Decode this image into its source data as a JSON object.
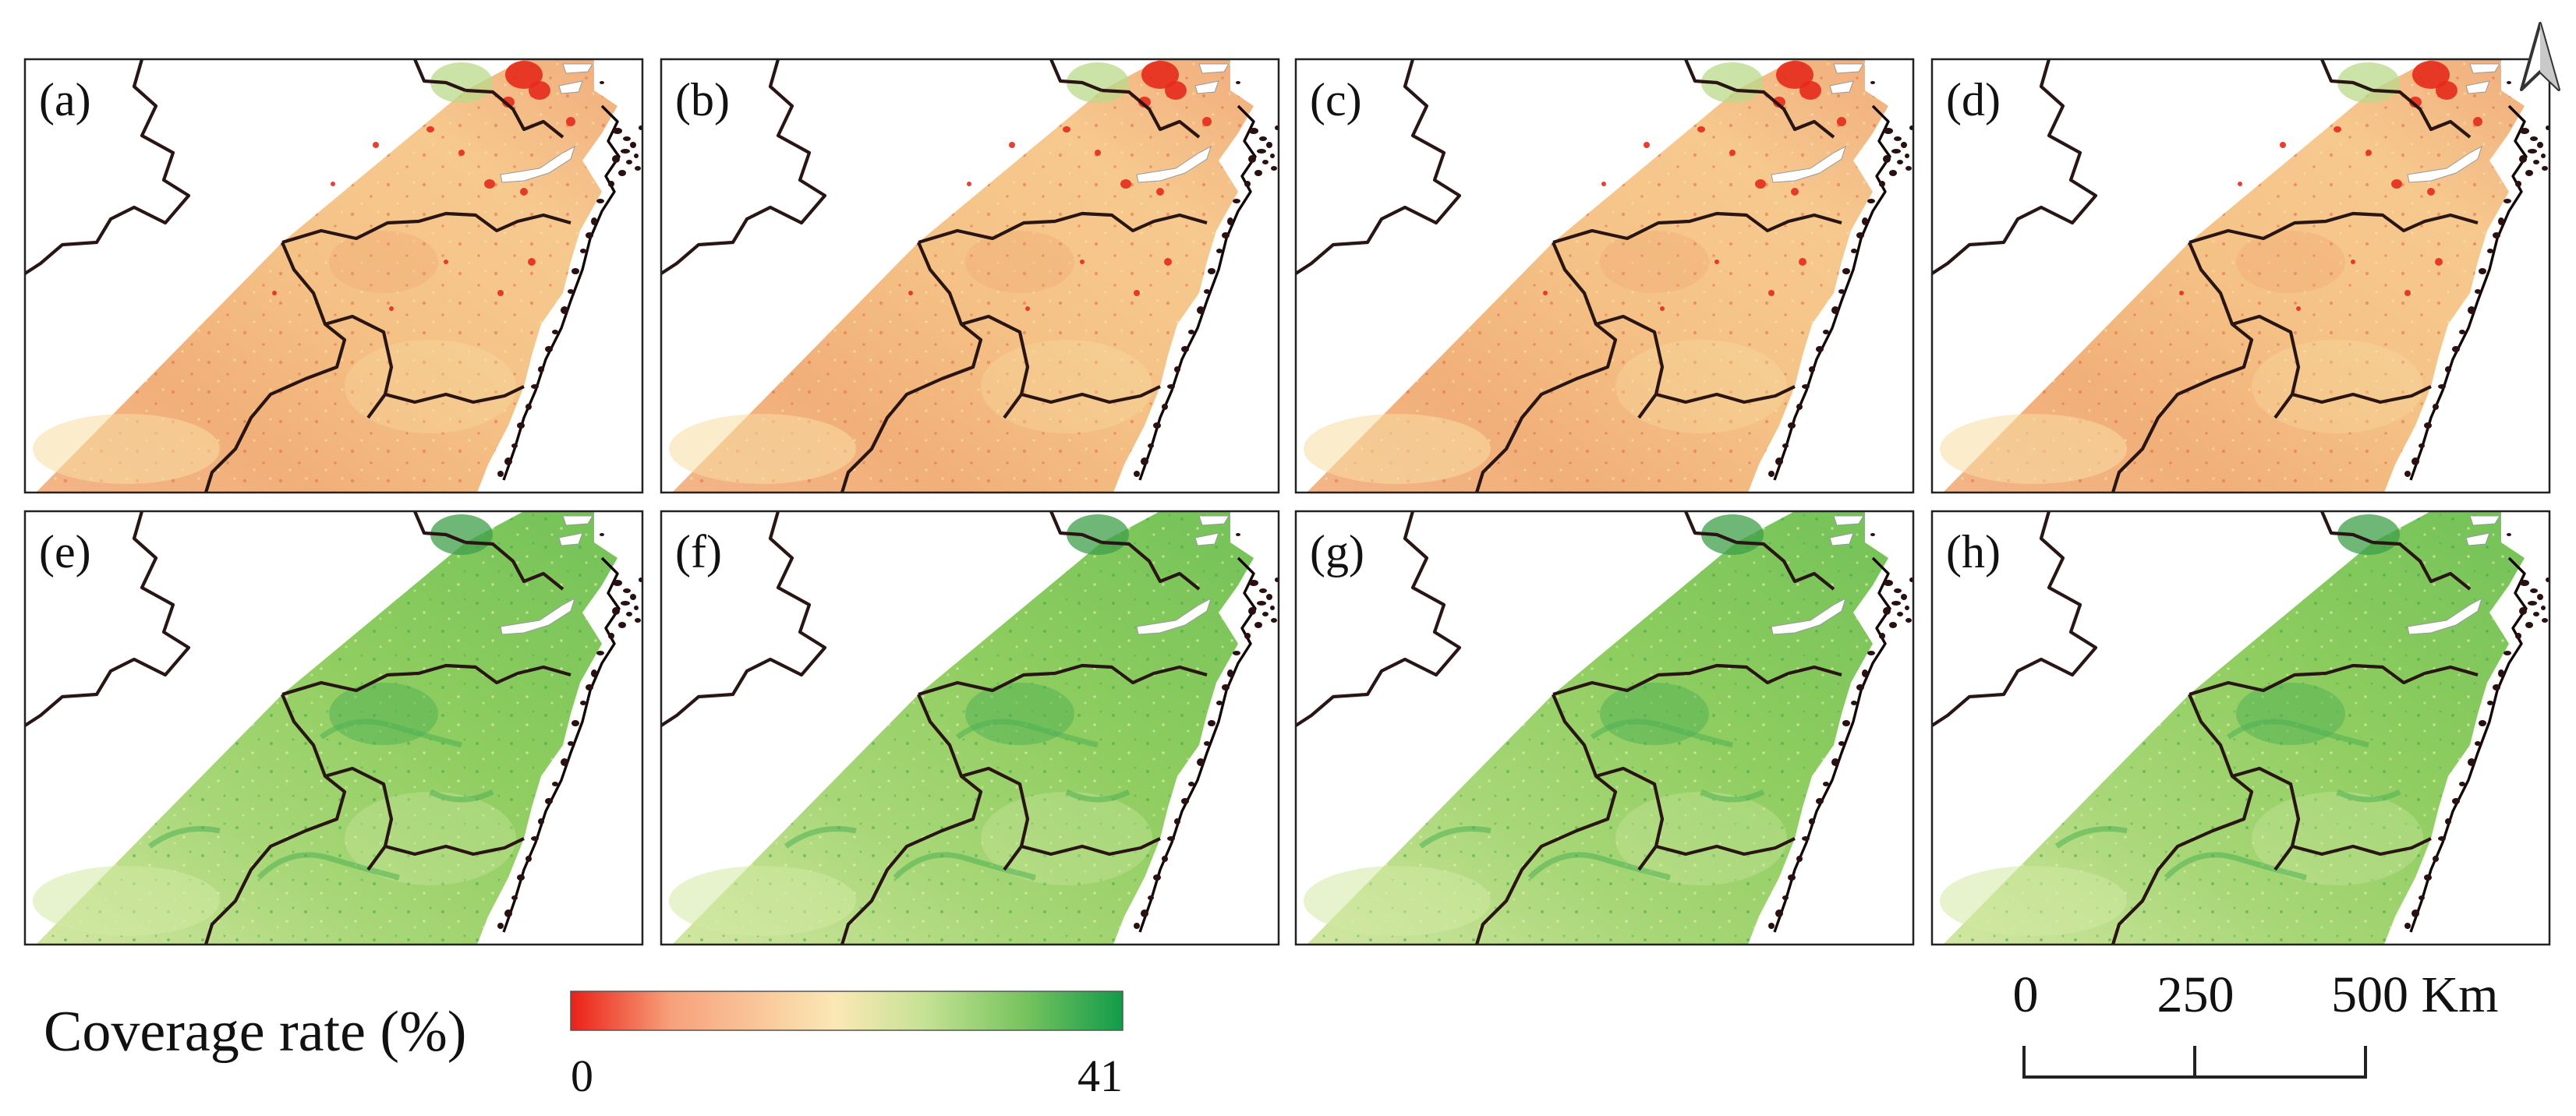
{
  "figure": {
    "panels": [
      {
        "id": "a",
        "label": "(a)",
        "palette": "sparse"
      },
      {
        "id": "b",
        "label": "(b)",
        "palette": "sparse"
      },
      {
        "id": "c",
        "label": "(c)",
        "palette": "sparse"
      },
      {
        "id": "d",
        "label": "(d)",
        "palette": "sparse"
      },
      {
        "id": "e",
        "label": "(e)",
        "palette": "dense"
      },
      {
        "id": "f",
        "label": "(f)",
        "palette": "dense"
      },
      {
        "id": "g",
        "label": "(g)",
        "palette": "dense"
      },
      {
        "id": "h",
        "label": "(h)",
        "palette": "dense"
      }
    ],
    "colors": {
      "sparse_base": "#f5c087",
      "sparse_light": "#f7dca2",
      "sparse_dark": "#ee9b66",
      "sparse_hot": "#e62a1b",
      "dense_base": "#8fcd61",
      "dense_light": "#d2e9a2",
      "dense_dark": "#4eb054",
      "water": "#ffffff",
      "border": "#2a1515"
    }
  },
  "legend": {
    "title": "Coverage rate (%)",
    "min_label": "0",
    "max_label": "41",
    "min_value": 0,
    "max_value": 41,
    "colormap": [
      "#ea2017",
      "#f7a07a",
      "#fbe8b5",
      "#c6e294",
      "#78c45f",
      "#129b4a"
    ]
  },
  "scale_bar": {
    "labels": [
      "0",
      "250",
      "500 Km"
    ],
    "values": [
      0,
      250,
      500
    ],
    "unit": "Km"
  },
  "north_arrow": {
    "icon": "north-arrow-icon"
  }
}
